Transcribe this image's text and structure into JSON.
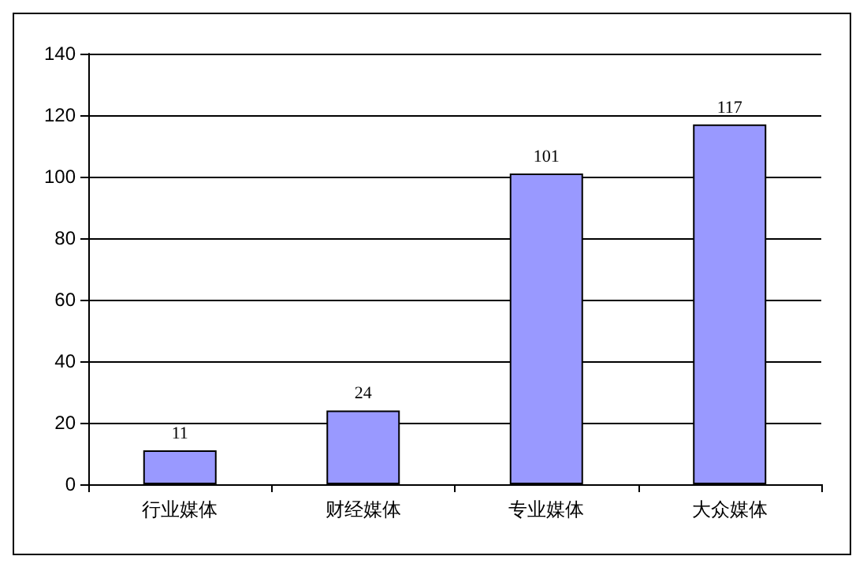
{
  "chart_data": {
    "type": "bar",
    "categories": [
      "行业媒体",
      "财经媒体",
      "专业媒体",
      "大众媒体"
    ],
    "values": [
      11,
      24,
      101,
      117
    ],
    "color": "#9999ff",
    "ylim": [
      0,
      140
    ],
    "yticks": [
      0,
      20,
      40,
      60,
      80,
      100,
      120,
      140
    ],
    "grid": "y",
    "data_labels": true
  }
}
